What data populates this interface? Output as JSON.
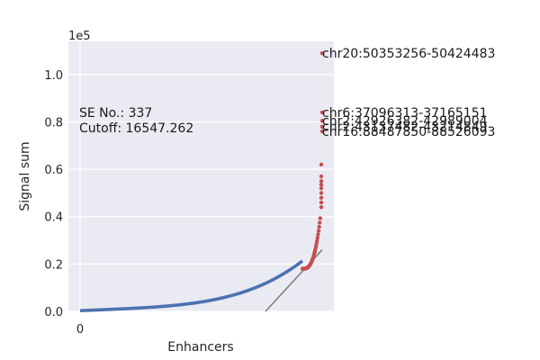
{
  "chart_data": {
    "type": "scatter",
    "title": "",
    "xlabel": "Enhancers",
    "ylabel": "Signal sum",
    "scale_label": "1e5",
    "x_tick_labels": [
      "0"
    ],
    "y_tick_labels": [
      "0.0",
      "0.2",
      "0.4",
      "0.6",
      "0.8",
      "1.0"
    ],
    "y_tick_values": [
      0,
      20000,
      40000,
      60000,
      80000,
      100000
    ],
    "ylim": [
      0,
      114000
    ],
    "grid": true,
    "colors": {
      "background": "#eaeaf2",
      "grid": "#ffffff",
      "typical": "#4c72b0",
      "super": "#c44e52",
      "cutoff_line": "#808080"
    },
    "annotation": {
      "se_label": "SE No.: 337",
      "cutoff_label": "Cutoff: 16547.262"
    },
    "labeled_points": [
      {
        "label": "chr20:50353256-50424483",
        "y": 109000
      },
      {
        "label": "chr6:37096313-37165151",
        "y": 84000
      },
      {
        "label": "chr2:42926382-42989004",
        "y": 80500
      },
      {
        "label": "chr2:43137482-43214849",
        "y": 78000
      },
      {
        "label": "chr16:88487850-88526093",
        "y": 76000
      }
    ]
  }
}
